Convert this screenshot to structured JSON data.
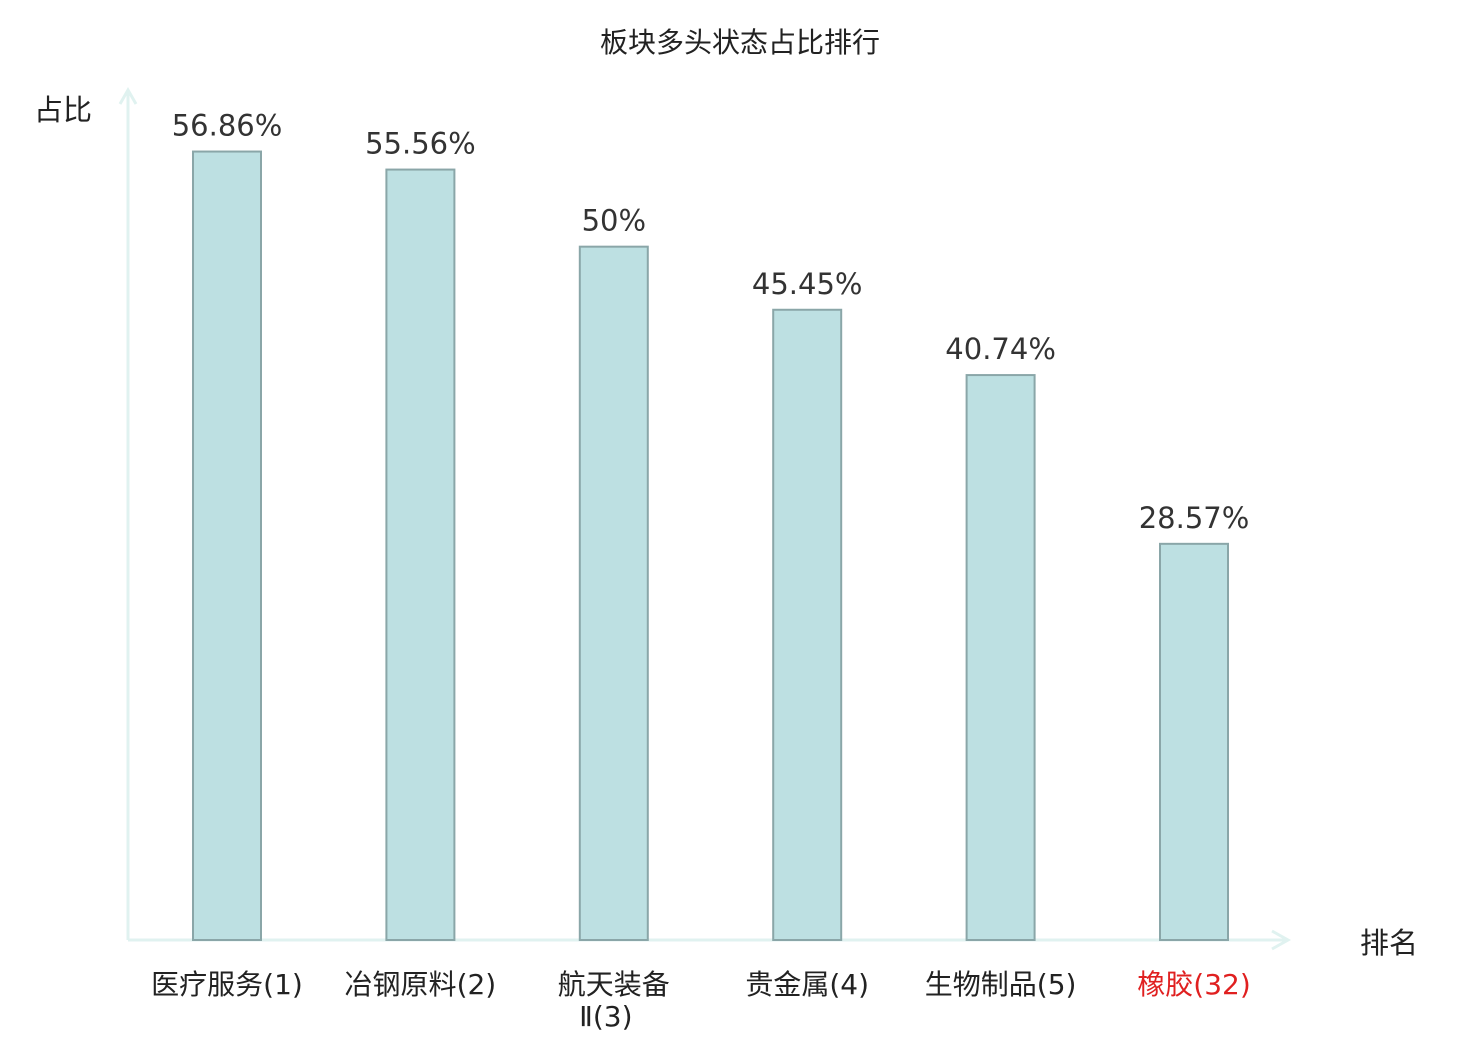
{
  "chart_data": {
    "type": "bar",
    "title": "板块多头状态占比排行",
    "xlabel": "排名",
    "ylabel": "占比",
    "categories": [
      {
        "name": "医疗服务",
        "rank": "(1)"
      },
      {
        "name": "冶钢原料",
        "rank": "(2)"
      },
      {
        "name": "航天装备",
        "name2": "Ⅱ",
        "rank": "(3)"
      },
      {
        "name": "贵金属",
        "rank": "(4)"
      },
      {
        "name": "生物制品",
        "rank": "(5)"
      },
      {
        "name": "橡胶",
        "rank": "(32)",
        "highlight": true
      }
    ],
    "values": [
      56.86,
      55.56,
      50,
      45.45,
      40.74,
      28.57
    ],
    "value_labels": [
      "56.86%",
      "55.56%",
      "50%",
      "45.45%",
      "40.74%",
      "28.57%"
    ],
    "ylim": [
      0,
      60
    ],
    "grid": false,
    "colors": {
      "bar_fill": "#bde0e2",
      "bar_stroke": "#8aa6a8",
      "axis": "#e0f2f0",
      "highlight": "#e02020"
    }
  }
}
